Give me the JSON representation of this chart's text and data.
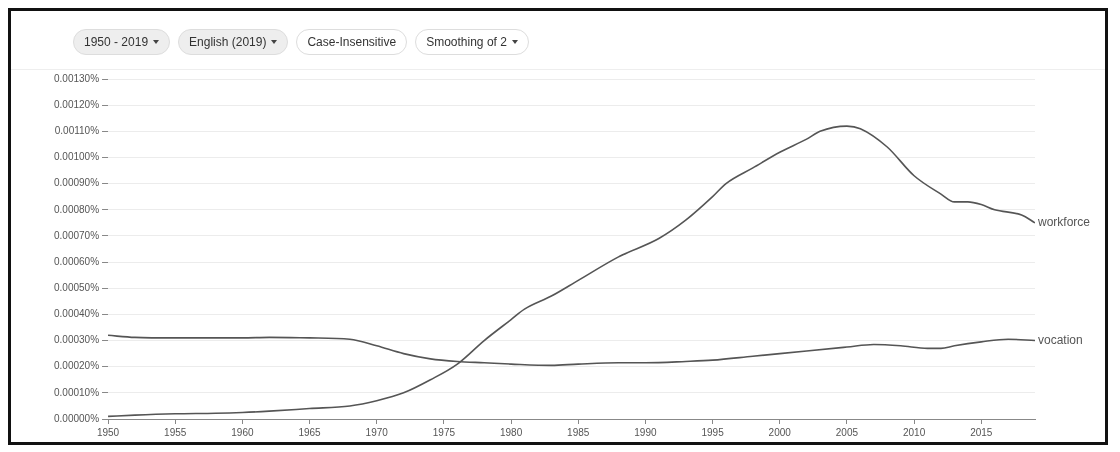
{
  "chart_data": {
    "type": "line",
    "annotations": [
      "1950 - 2019",
      "English (2019)",
      "Case-Insensitive",
      "Smoothing of 2"
    ],
    "xlim": [
      1950,
      2019
    ],
    "xticks": [
      1950,
      1955,
      1960,
      1965,
      1970,
      1975,
      1980,
      1985,
      1990,
      1995,
      2000,
      2005,
      2010,
      2015
    ],
    "ylim": [
      0,
      0.0013
    ],
    "yticks": [
      {
        "value": 0,
        "label": "0.00000%"
      },
      {
        "value": 0.0001,
        "label": "0.00010%"
      },
      {
        "value": 0.0002,
        "label": "0.00020%"
      },
      {
        "value": 0.0003,
        "label": "0.00030%"
      },
      {
        "value": 0.0004,
        "label": "0.00040%"
      },
      {
        "value": 0.0005,
        "label": "0.00050%"
      },
      {
        "value": 0.0006,
        "label": "0.00060%"
      },
      {
        "value": 0.0007,
        "label": "0.00070%"
      },
      {
        "value": 0.0008,
        "label": "0.00080%"
      },
      {
        "value": 0.0009,
        "label": "0.00090%"
      },
      {
        "value": 0.001,
        "label": "0.00100%"
      },
      {
        "value": 0.0011,
        "label": "0.00110%"
      },
      {
        "value": 0.0012,
        "label": "0.00120%"
      },
      {
        "value": 0.0013,
        "label": "0.00130%"
      }
    ],
    "grid": "y",
    "legend": false,
    "marker": "none",
    "line_style": "solid",
    "series": [
      {
        "name": "workforce",
        "color": "#555555",
        "x": [
          1950,
          1952,
          1955,
          1958,
          1960,
          1962,
          1965,
          1968,
          1970,
          1972,
          1974,
          1976,
          1978,
          1980,
          1981,
          1983,
          1985,
          1988,
          1991,
          1993,
          1995,
          1996,
          1998,
          2000,
          2002,
          2003,
          2005,
          2006,
          2008,
          2010,
          2012,
          2013,
          2014,
          2015,
          2016,
          2018,
          2019
        ],
        "values": [
          1e-05,
          1.5e-05,
          2e-05,
          2.2e-05,
          2.5e-05,
          3e-05,
          4e-05,
          5e-05,
          7e-05,
          0.0001,
          0.00015,
          0.00021,
          0.0003,
          0.00038,
          0.00042,
          0.00047,
          0.00053,
          0.00062,
          0.00069,
          0.00076,
          0.00085,
          0.0009,
          0.00096,
          0.00102,
          0.00107,
          0.0011,
          0.00112,
          0.00111,
          0.00104,
          0.00093,
          0.00086,
          0.00083,
          0.00083,
          0.00082,
          0.0008,
          0.00078,
          0.00075
        ]
      },
      {
        "name": "vocation",
        "color": "#555555",
        "x": [
          1950,
          1952,
          1955,
          1960,
          1962,
          1965,
          1968,
          1970,
          1972,
          1974,
          1976,
          1978,
          1980,
          1983,
          1985,
          1988,
          1990,
          1993,
          1995,
          1998,
          2000,
          2002,
          2005,
          2007,
          2009,
          2011,
          2012,
          2013,
          2015,
          2017,
          2019
        ],
        "values": [
          0.00032,
          0.000312,
          0.00031,
          0.00031,
          0.000312,
          0.00031,
          0.000305,
          0.00028,
          0.00025,
          0.00023,
          0.00022,
          0.000215,
          0.00021,
          0.000205,
          0.00021,
          0.000215,
          0.000215,
          0.00022,
          0.000225,
          0.00024,
          0.00025,
          0.00026,
          0.000275,
          0.000285,
          0.00028,
          0.00027,
          0.00027,
          0.00028,
          0.000295,
          0.000305,
          0.0003
        ]
      }
    ]
  }
}
